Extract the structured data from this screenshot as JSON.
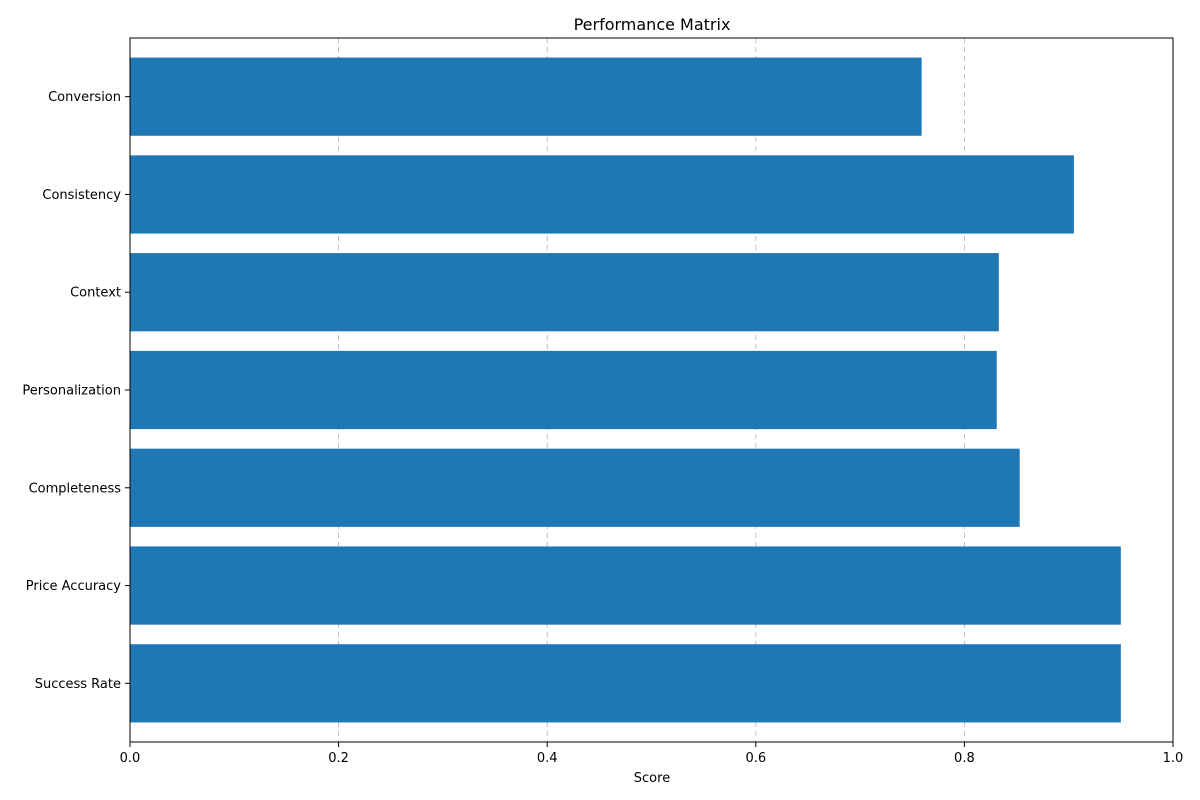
{
  "chart_data": {
    "type": "bar",
    "orientation": "horizontal",
    "title": "Performance Matrix",
    "xlabel": "Score",
    "ylabel": "",
    "xlim": [
      0,
      1.0
    ],
    "xticks": [
      "0.0",
      "0.2",
      "0.4",
      "0.6",
      "0.8",
      "1.0"
    ],
    "categories": [
      "Success Rate",
      "Price Accuracy",
      "Completeness",
      "Personalization",
      "Context",
      "Consistency",
      "Conversion"
    ],
    "values": [
      0.95,
      0.95,
      0.853,
      0.831,
      0.833,
      0.905,
      0.759
    ],
    "grid": "x-dashed",
    "legend": "none",
    "bar_color": "#1f77b4"
  }
}
